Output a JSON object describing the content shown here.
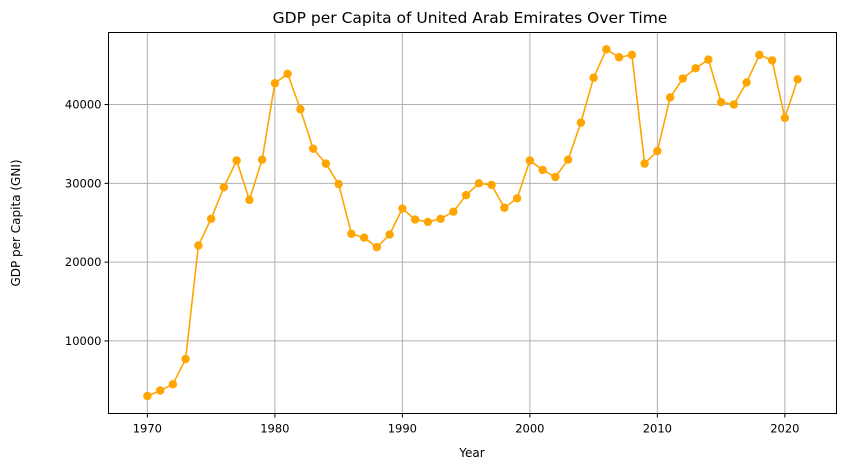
{
  "chart_data": {
    "type": "line",
    "title": "GDP per Capita of United Arab Emirates Over Time",
    "xlabel": "Year",
    "ylabel": "GDP per Capita (GNI)",
    "xlim": [
      1966.95,
      2024.05
    ],
    "ylim": [
      790,
      49140
    ],
    "xticks": [
      1970,
      1980,
      1990,
      2000,
      2010,
      2020
    ],
    "yticks": [
      10000,
      20000,
      30000,
      40000
    ],
    "grid": true,
    "color": "#ffa500",
    "marker": "circle",
    "series": [
      {
        "x": [
          1970,
          1971,
          1972,
          1973,
          1974,
          1975,
          1976,
          1977,
          1978,
          1979,
          1980,
          1981,
          1982,
          1983,
          1984,
          1985,
          1986,
          1987,
          1988,
          1989,
          1990,
          1991,
          1992,
          1993,
          1994,
          1995,
          1996,
          1997,
          1998,
          1999,
          2000,
          2001,
          2002,
          2003,
          2004,
          2005,
          2006,
          2007,
          2008,
          2009,
          2010,
          2011,
          2012,
          2013,
          2014,
          2015,
          2016,
          2017,
          2018,
          2019,
          2020,
          2021
        ],
        "values": [
          3000,
          3700,
          4500,
          7700,
          22100,
          25500,
          29500,
          32900,
          27900,
          33000,
          42700,
          43900,
          39400,
          34400,
          32500,
          29900,
          23600,
          23100,
          21900,
          23500,
          26800,
          25400,
          25100,
          25500,
          26400,
          28500,
          30000,
          29800,
          26900,
          28100,
          32900,
          31700,
          30800,
          33000,
          37700,
          43400,
          47000,
          46000,
          46300,
          32500,
          34100,
          40900,
          43300,
          44600,
          45700,
          40300,
          40000,
          42800,
          46300,
          45600,
          38300,
          43200
        ]
      }
    ]
  }
}
